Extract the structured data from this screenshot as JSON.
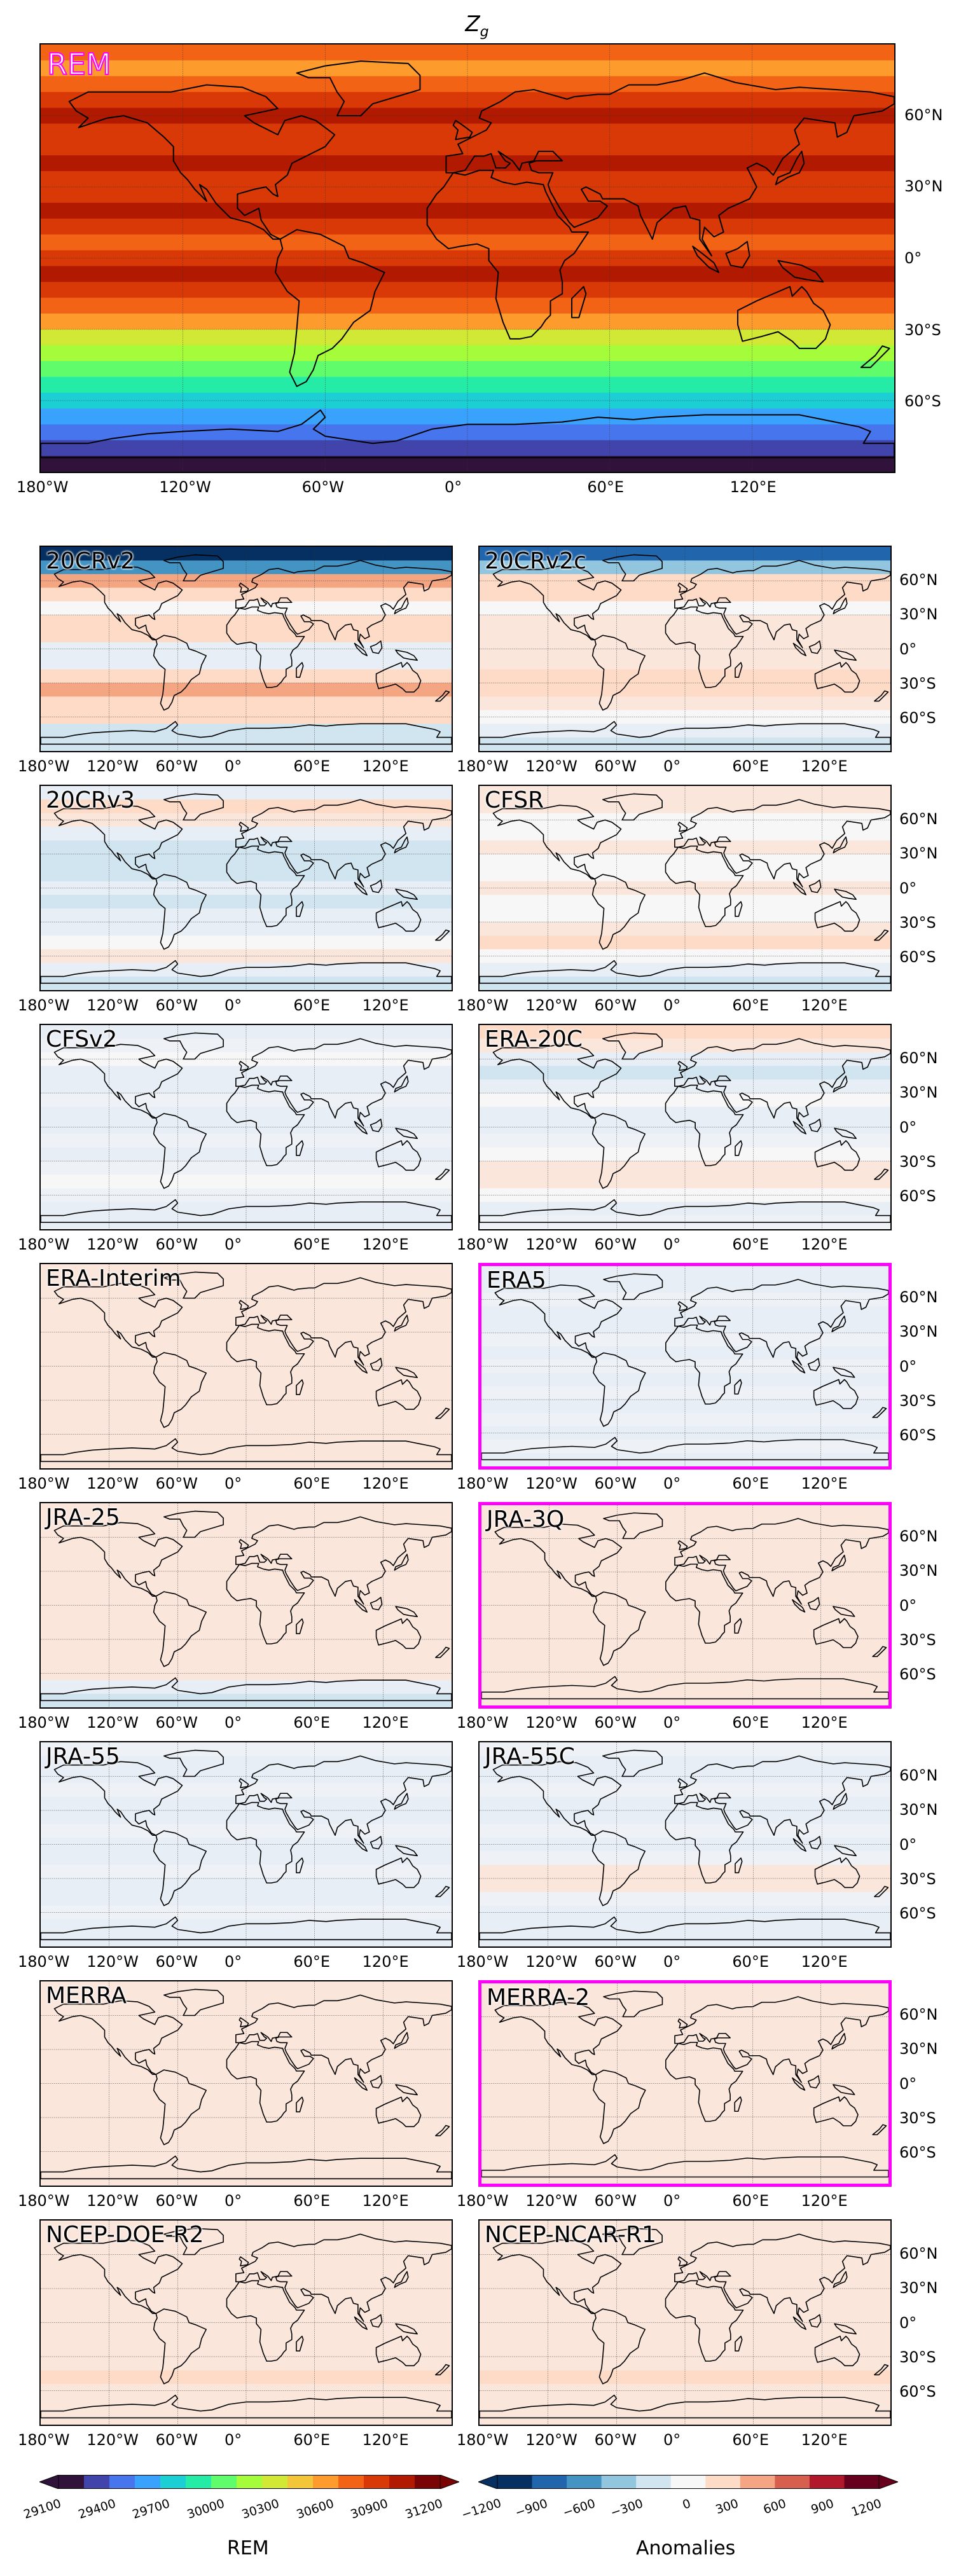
{
  "figure": {
    "title_main": "Z",
    "title_sub": "g"
  },
  "top_panel": {
    "label": "REM",
    "x_ticks": [
      "180°W",
      "120°W",
      "60°W",
      "0°",
      "60°E",
      "120°E"
    ],
    "y_ticks": [
      "60°N",
      "30°N",
      "0°",
      "30°S",
      "60°S"
    ]
  },
  "panels": [
    {
      "label": "20CRv2",
      "highlighted": false
    },
    {
      "label": "20CRv2c",
      "highlighted": false
    },
    {
      "label": "20CRv3",
      "highlighted": false
    },
    {
      "label": "CFSR",
      "highlighted": false
    },
    {
      "label": "CFSv2",
      "highlighted": false
    },
    {
      "label": "ERA-20C",
      "highlighted": false
    },
    {
      "label": "ERA-Interim",
      "highlighted": false
    },
    {
      "label": "ERA5",
      "highlighted": true
    },
    {
      "label": "JRA-25",
      "highlighted": false
    },
    {
      "label": "JRA-3Q",
      "highlighted": true
    },
    {
      "label": "JRA-55",
      "highlighted": false
    },
    {
      "label": "JRA-55C",
      "highlighted": false
    },
    {
      "label": "MERRA",
      "highlighted": false
    },
    {
      "label": "MERRA-2",
      "highlighted": true
    },
    {
      "label": "NCEP-DOE-R2",
      "highlighted": false
    },
    {
      "label": "NCEP-NCAR-R1",
      "highlighted": false
    }
  ],
  "small_x_ticks": [
    "180°W",
    "120°W",
    "60°W",
    "0°",
    "60°E",
    "120°E"
  ],
  "small_y_ticks": [
    "60°N",
    "30°N",
    "0°",
    "30°S",
    "60°S"
  ],
  "colorbars": {
    "rem": {
      "label": "REM",
      "ticks": [
        "29100",
        "29400",
        "29700",
        "30000",
        "30300",
        "30600",
        "30900",
        "31200"
      ]
    },
    "anomalies": {
      "label": "Anomalies",
      "ticks": [
        "−1200",
        "−900",
        "−600",
        "−300",
        "0",
        "300",
        "600",
        "900",
        "1200"
      ]
    }
  },
  "colors": {
    "highlight": "#ff00ff",
    "rem_scale": [
      "#30123b",
      "#4145ab",
      "#4675ed",
      "#39a2fc",
      "#1bcfd4",
      "#24eca6",
      "#61fc6c",
      "#a4fc3b",
      "#d1e834",
      "#f3c63a",
      "#fe9b2d",
      "#f36315",
      "#d93807",
      "#b11901",
      "#7a0403"
    ],
    "anomaly_scale": [
      "#053061",
      "#2166ac",
      "#4393c3",
      "#92c5de",
      "#d1e5f0",
      "#f7f7f7",
      "#fddbc7",
      "#f4a582",
      "#d6604d",
      "#b2182b",
      "#67001f"
    ]
  }
}
